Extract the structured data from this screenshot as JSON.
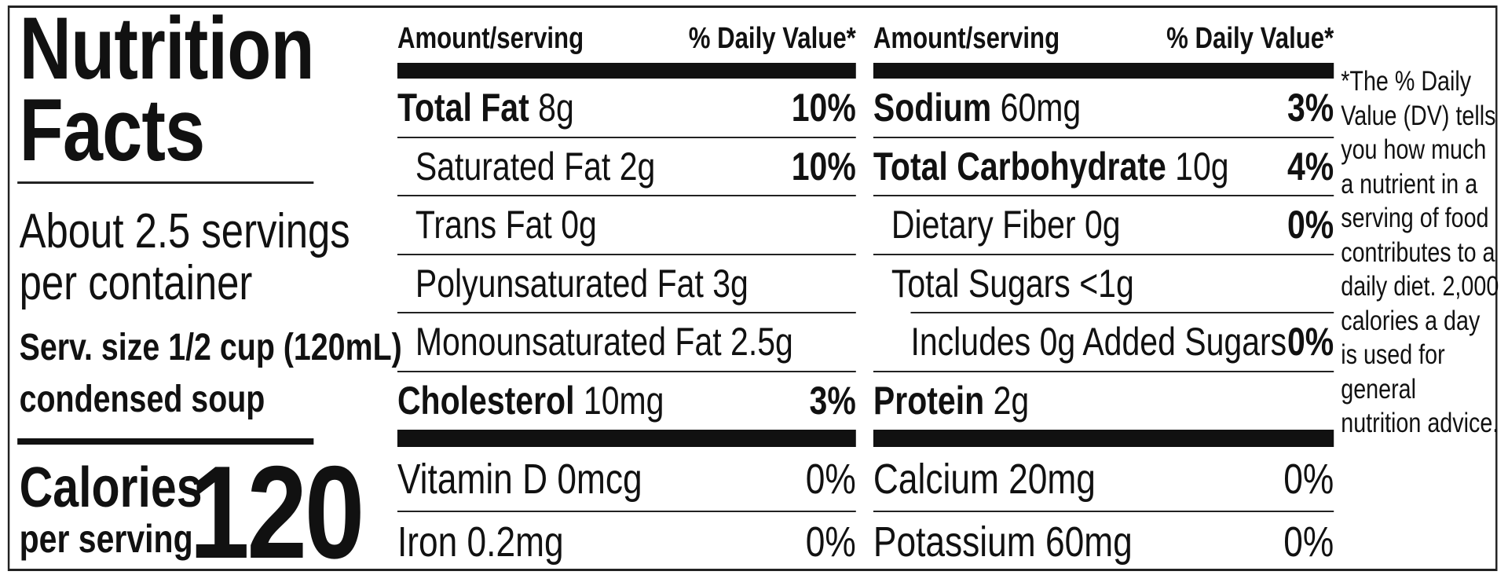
{
  "title": "Nutrition Facts",
  "servings": "About 2.5 servings per container",
  "serving_size": "Serv. size 1/2 cup (120mL)",
  "serving_size_note": "condensed soup",
  "calories_label": "Calories",
  "calories_sub": "per serving",
  "calories": "120",
  "columns": [
    {
      "header_amount": "Amount/serving",
      "header_dv": "% Daily Value*",
      "rows": [
        {
          "name": "Total Fat",
          "amount": "8g",
          "dv": "10%"
        },
        {
          "name": "Saturated Fat",
          "amount": "2g",
          "dv": "10%"
        },
        {
          "name": "Trans Fat",
          "amount": "0g"
        },
        {
          "name": "Polyunsaturated Fat",
          "amount": "3g"
        },
        {
          "name": "Monounsaturated Fat",
          "amount": "2.5g"
        },
        {
          "name": "Cholesterol",
          "amount": "10mg",
          "dv": "3%"
        }
      ],
      "vitamins": [
        {
          "name": "Vitamin D 0mcg",
          "dv": "0%"
        },
        {
          "name": "Iron 0.2mg",
          "dv": "0%"
        }
      ]
    },
    {
      "header_amount": "Amount/serving",
      "header_dv": "% Daily Value*",
      "rows": [
        {
          "name": "Sodium",
          "amount": "60mg",
          "dv": "3%"
        },
        {
          "name": "Total Carbohydrate",
          "amount": "10g",
          "dv": "4%"
        },
        {
          "name": "Dietary Fiber",
          "amount": "0g",
          "dv": "0%"
        },
        {
          "name": "Total Sugars",
          "amount": "<1g"
        },
        {
          "name": "Includes 0g Added Sugars",
          "dv": "0%"
        },
        {
          "name": "Protein",
          "amount": "2g"
        }
      ],
      "vitamins": [
        {
          "name": "Calcium 20mg",
          "dv": "0%"
        },
        {
          "name": "Potassium 60mg",
          "dv": "0%"
        }
      ]
    }
  ],
  "footnote": "*The % Daily Value (DV) tells you how much a nutrient in a serving of food contributes to a daily diet. 2,000 calories a day is used for general nutrition advice."
}
